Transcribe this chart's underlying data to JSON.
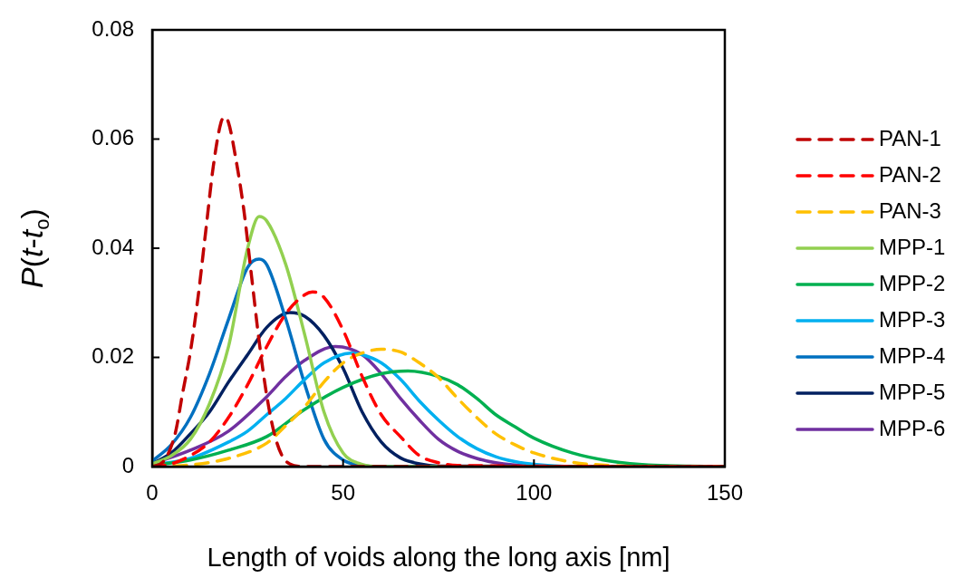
{
  "chart_data": {
    "type": "line",
    "xlabel": "Length of voids along the long axis [nm]",
    "ylabel": "P(t-t$_{o}$)",
    "xlim": [
      0,
      150
    ],
    "xticks": [
      0,
      50,
      100,
      150
    ],
    "ylim": [
      0,
      0.08
    ],
    "yticks": [
      0,
      0.02,
      0.04,
      0.06,
      0.08
    ],
    "grid": false,
    "legend": "right",
    "marker": "none",
    "series": [
      {
        "name": "PAN-1",
        "color": "#c00000",
        "line_style": "dashed",
        "x": [
          0,
          3,
          6,
          8,
          10,
          12,
          14,
          16,
          18,
          19,
          20,
          22,
          24,
          26,
          28,
          30,
          32,
          34,
          36,
          40,
          50,
          150
        ],
        "values": [
          0,
          0.001,
          0.006,
          0.0136,
          0.021,
          0.031,
          0.043,
          0.055,
          0.063,
          0.064,
          0.063,
          0.056,
          0.047,
          0.035,
          0.023,
          0.013,
          0.006,
          0.002,
          0.0005,
          0,
          0,
          0
        ]
      },
      {
        "name": "PAN-2",
        "color": "#ff0000",
        "line_style": "dashed",
        "x": [
          0,
          5,
          10,
          15,
          20,
          25,
          30,
          35,
          40,
          42,
          45,
          50,
          55,
          60,
          65,
          70,
          75,
          80,
          150
        ],
        "values": [
          0,
          0.0005,
          0.002,
          0.0045,
          0.009,
          0.015,
          0.022,
          0.028,
          0.0315,
          0.032,
          0.031,
          0.025,
          0.0165,
          0.0095,
          0.0055,
          0.002,
          0.0007,
          0.0002,
          0
        ]
      },
      {
        "name": "PAN-3",
        "color": "#ffc000",
        "line_style": "dashed",
        "x": [
          0,
          10,
          20,
          30,
          35,
          40,
          45,
          50,
          55,
          60,
          65,
          70,
          75,
          80,
          85,
          90,
          95,
          100,
          110,
          120,
          130,
          150
        ],
        "values": [
          0,
          0.0003,
          0.0015,
          0.0043,
          0.0075,
          0.011,
          0.0155,
          0.019,
          0.0208,
          0.0215,
          0.021,
          0.019,
          0.0163,
          0.0125,
          0.009,
          0.006,
          0.004,
          0.0025,
          0.0008,
          0.0002,
          0,
          0
        ]
      },
      {
        "name": "MPP-1",
        "color": "#92d050",
        "line_style": "solid",
        "x": [
          0,
          5,
          10,
          15,
          20,
          25,
          28,
          30,
          35,
          40,
          45,
          50,
          55,
          60,
          150
        ],
        "values": [
          0.0005,
          0.002,
          0.005,
          0.0115,
          0.022,
          0.04,
          0.0458,
          0.045,
          0.037,
          0.024,
          0.01,
          0.0025,
          0.0004,
          0,
          0
        ]
      },
      {
        "name": "MPP-2",
        "color": "#00b050",
        "line_style": "solid",
        "x": [
          0,
          10,
          20,
          30,
          40,
          50,
          60,
          67,
          75,
          80,
          85,
          90,
          95,
          100,
          110,
          120,
          130,
          140,
          150
        ],
        "values": [
          0.0002,
          0.0012,
          0.003,
          0.0055,
          0.0105,
          0.0145,
          0.017,
          0.0175,
          0.0165,
          0.015,
          0.0125,
          0.0095,
          0.0073,
          0.0052,
          0.0025,
          0.001,
          0.0003,
          0.0001,
          0
        ]
      },
      {
        "name": "MPP-3",
        "color": "#00b0f0",
        "line_style": "solid",
        "x": [
          0,
          10,
          20,
          25,
          30,
          35,
          40,
          45,
          52,
          55,
          60,
          65,
          70,
          75,
          80,
          85,
          90,
          95,
          100,
          110,
          150
        ],
        "values": [
          0.0003,
          0.0015,
          0.0045,
          0.0065,
          0.0095,
          0.0125,
          0.016,
          0.019,
          0.0208,
          0.0205,
          0.019,
          0.016,
          0.012,
          0.0085,
          0.0055,
          0.0033,
          0.0018,
          0.0009,
          0.0004,
          0,
          0
        ]
      },
      {
        "name": "MPP-4",
        "color": "#0070c0",
        "line_style": "solid",
        "x": [
          0,
          5,
          10,
          15,
          20,
          25,
          28,
          30,
          35,
          40,
          45,
          50,
          55,
          60,
          150
        ],
        "values": [
          0.001,
          0.004,
          0.009,
          0.017,
          0.027,
          0.0365,
          0.038,
          0.037,
          0.027,
          0.015,
          0.005,
          0.0012,
          0.0002,
          0,
          0
        ]
      },
      {
        "name": "MPP-5",
        "color": "#002060",
        "line_style": "solid",
        "x": [
          0,
          5,
          10,
          15,
          20,
          25,
          30,
          36,
          40,
          45,
          50,
          55,
          60,
          65,
          70,
          75,
          150
        ],
        "values": [
          0.0005,
          0.0025,
          0.006,
          0.01,
          0.0155,
          0.0205,
          0.0255,
          0.0282,
          0.0275,
          0.024,
          0.018,
          0.01,
          0.0045,
          0.0016,
          0.0005,
          0.0001,
          0
        ]
      },
      {
        "name": "MPP-6",
        "color": "#7030a0",
        "line_style": "solid",
        "x": [
          0,
          10,
          20,
          30,
          35,
          40,
          48,
          55,
          60,
          65,
          70,
          75,
          80,
          85,
          90,
          100,
          110,
          150
        ],
        "values": [
          0.0005,
          0.003,
          0.0065,
          0.0128,
          0.0165,
          0.0195,
          0.022,
          0.0205,
          0.017,
          0.0125,
          0.0085,
          0.005,
          0.0028,
          0.0015,
          0.0007,
          0.0001,
          0,
          0
        ]
      }
    ]
  }
}
